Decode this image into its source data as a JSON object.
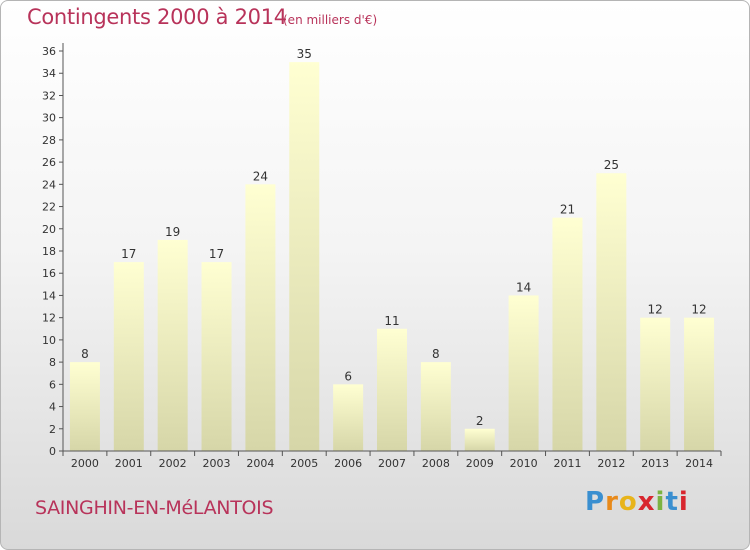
{
  "header": {
    "title": "Contingents 2000 à 2014",
    "unit": "(en milliers d'€)"
  },
  "footer": {
    "commune": "SAINGHIN-EN-MéLANTOIS",
    "logo_letters": [
      "P",
      "r",
      "o",
      "x",
      "i",
      "t",
      "i"
    ],
    "logo_colors": [
      "#3a8fd0",
      "#e88a1a",
      "#e8b41a",
      "#d8262e",
      "#7cb341",
      "#3a8fd0",
      "#d8262e"
    ]
  },
  "chart_data": {
    "type": "bar",
    "title": "Contingents 2000 à 2014",
    "xlabel": "",
    "ylabel": "",
    "categories": [
      "2000",
      "2001",
      "2002",
      "2003",
      "2004",
      "2005",
      "2006",
      "2007",
      "2008",
      "2009",
      "2010",
      "2011",
      "2012",
      "2013",
      "2014"
    ],
    "values": [
      8,
      17,
      19,
      17,
      24,
      35,
      6,
      11,
      8,
      2,
      14,
      21,
      25,
      12,
      12
    ],
    "ylim": [
      0,
      36
    ],
    "yticks": [
      0,
      2,
      4,
      6,
      8,
      10,
      12,
      14,
      16,
      18,
      20,
      22,
      24,
      26,
      28,
      30,
      32,
      34,
      36
    ],
    "grid": false,
    "data_labels": true,
    "colors": {
      "bar_top": "#ffffd2",
      "bar_bottom": "#d6d6a8",
      "axis": "#555555",
      "text": "#333333"
    }
  }
}
